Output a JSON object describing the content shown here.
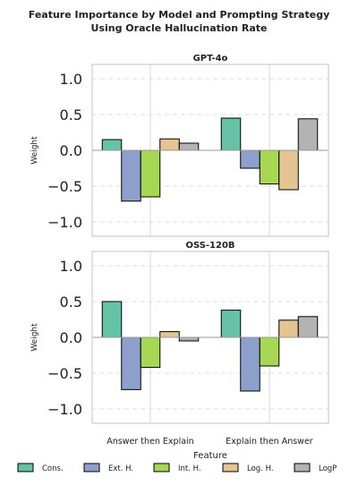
{
  "title_line1": "Feature Importance by Model and Prompting Strategy",
  "title_line2": "Using Oracle Hallucination Rate",
  "xlabel": "Feature",
  "ylabel": "Weight",
  "colors": {
    "Cons.": "#66c2a5",
    "Ext. H.": "#8da0cb",
    "Int. H.": "#a6d854",
    "Log. H.": "#e5c494",
    "LogP": "#b3b3b3"
  },
  "chart_data": {
    "type": "bar",
    "categories": [
      "Answer then Explain",
      "Explain then Answer"
    ],
    "ylim": [
      -1.2,
      1.2
    ],
    "yticks": [
      1.0,
      0.5,
      0.0,
      -0.5,
      -1.0
    ],
    "ytick_labels": [
      "1.0",
      "0.5",
      "0.0",
      "−0.5",
      "−1.0"
    ],
    "grid": true,
    "legend_position": "bottom",
    "panels": [
      {
        "title": "GPT-4o",
        "series": [
          {
            "name": "Cons.",
            "values": [
              0.15,
              0.45
            ]
          },
          {
            "name": "Ext. H.",
            "values": [
              -0.71,
              -0.25
            ]
          },
          {
            "name": "Int. H.",
            "values": [
              -0.65,
              -0.47
            ]
          },
          {
            "name": "Log. H.",
            "values": [
              0.16,
              -0.55
            ]
          },
          {
            "name": "LogP",
            "values": [
              0.1,
              0.44
            ]
          }
        ]
      },
      {
        "title": "OSS-120B",
        "series": [
          {
            "name": "Cons.",
            "values": [
              0.5,
              0.38
            ]
          },
          {
            "name": "Ext. H.",
            "values": [
              -0.73,
              -0.75
            ]
          },
          {
            "name": "Int. H.",
            "values": [
              -0.42,
              -0.4
            ]
          },
          {
            "name": "Log. H.",
            "values": [
              0.08,
              0.24
            ]
          },
          {
            "name": "LogP",
            "values": [
              -0.05,
              0.29
            ]
          }
        ]
      }
    ]
  }
}
